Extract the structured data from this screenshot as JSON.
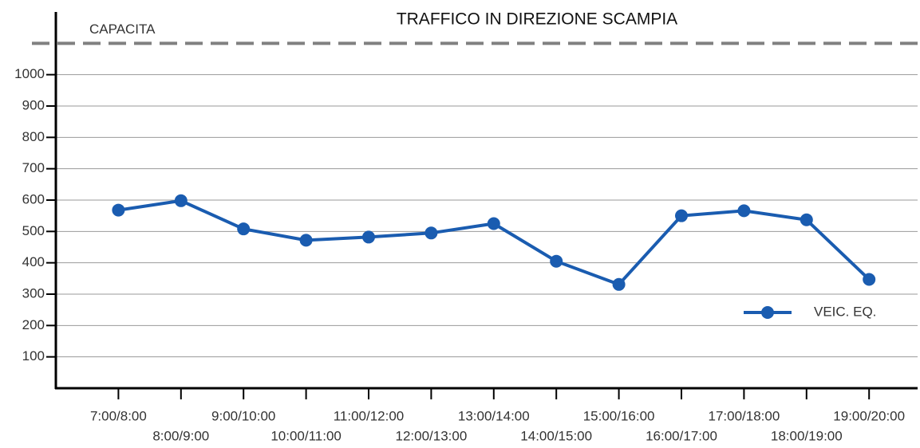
{
  "chart_data": {
    "type": "line",
    "title": "TRAFFICO IN DIREZIONE SCAMPIA",
    "categories": [
      "7:00/8:00",
      "8:00/9:00",
      "9:00/10:00",
      "10:00/11:00",
      "11:00/12:00",
      "12:00/13:00",
      "13:00/14:00",
      "14:00/15:00",
      "15:00/16:00",
      "16:00/17:00",
      "17:00/18:00",
      "18:00/19:00",
      "19:00/20:00"
    ],
    "series": [
      {
        "name": "VEIC. EQ.",
        "color": "#1a5cb0",
        "values": [
          568,
          598,
          508,
          472,
          482,
          495,
          525,
          405,
          331,
          550,
          566,
          537,
          347
        ]
      }
    ],
    "capacity": {
      "label": "CAPACITA",
      "value": 1100
    },
    "ylim": [
      0,
      1200
    ],
    "yticks": [
      100,
      200,
      300,
      400,
      500,
      600,
      700,
      800,
      900,
      1000
    ],
    "grid": true,
    "legend": "right"
  }
}
